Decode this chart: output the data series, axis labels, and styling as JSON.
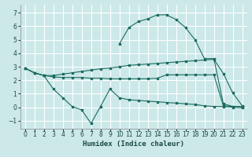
{
  "xlabel": "Humidex (Indice chaleur)",
  "background_color": "#cce8e8",
  "grid_color": "#ffffff",
  "line_color": "#1a6b5e",
  "xlim": [
    -0.5,
    23.5
  ],
  "ylim": [
    -1.6,
    7.6
  ],
  "xticks": [
    0,
    1,
    2,
    3,
    4,
    5,
    6,
    7,
    8,
    9,
    10,
    11,
    12,
    13,
    14,
    15,
    16,
    17,
    18,
    19,
    20,
    21,
    22,
    23
  ],
  "yticks": [
    -1,
    0,
    1,
    2,
    3,
    4,
    5,
    6,
    7
  ],
  "line1_x": [
    0,
    1,
    2,
    3,
    4,
    5,
    6,
    7,
    8,
    9,
    10,
    11,
    12,
    13,
    14,
    15,
    16,
    17,
    18,
    19,
    20,
    21,
    22,
    23
  ],
  "line1_y": [
    2.9,
    2.55,
    2.35,
    2.35,
    2.45,
    2.55,
    2.65,
    2.75,
    2.85,
    2.9,
    3.0,
    3.1,
    3.15,
    3.2,
    3.25,
    3.3,
    3.35,
    3.4,
    3.45,
    3.5,
    3.55,
    2.5,
    1.05,
    0.1
  ],
  "line2_x": [
    0,
    1,
    2,
    3,
    4,
    5,
    6,
    7,
    8,
    9,
    10,
    11,
    12,
    13,
    14,
    15,
    16,
    17,
    18,
    19,
    20,
    21,
    22,
    23
  ],
  "line2_y": [
    2.9,
    2.55,
    2.35,
    2.25,
    2.2,
    2.2,
    2.2,
    2.15,
    2.15,
    2.1,
    2.1,
    2.1,
    2.1,
    2.1,
    2.15,
    2.4,
    2.4,
    2.4,
    2.4,
    2.4,
    2.4,
    0.1,
    0.05,
    0.05
  ],
  "line3_x": [
    0,
    1,
    2,
    3,
    4,
    5,
    6,
    7,
    8,
    9,
    10,
    11,
    12,
    13,
    14,
    15,
    16,
    17,
    18,
    19,
    20,
    21,
    22,
    23
  ],
  "line3_y": [
    2.9,
    2.55,
    2.35,
    1.35,
    0.7,
    0.05,
    -0.2,
    -1.2,
    0.05,
    1.35,
    0.7,
    0.55,
    0.5,
    0.45,
    0.4,
    0.35,
    0.3,
    0.25,
    0.2,
    0.1,
    0.05,
    0.05,
    0.0,
    -0.05
  ],
  "line4_x": [
    10,
    11,
    12,
    13,
    14,
    15,
    16,
    17,
    18,
    19,
    20,
    21,
    22,
    23
  ],
  "line4_y": [
    4.7,
    5.9,
    6.35,
    6.55,
    6.85,
    6.85,
    6.5,
    5.9,
    5.0,
    3.6,
    3.6,
    0.25,
    0.05,
    0.05
  ]
}
